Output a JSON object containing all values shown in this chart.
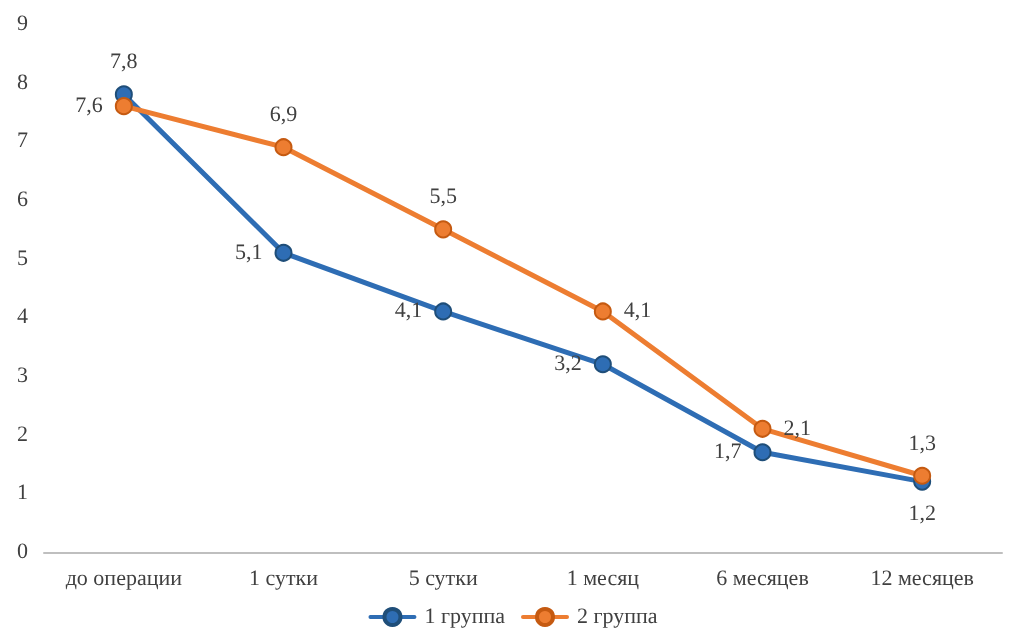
{
  "chart_data": {
    "type": "line",
    "categories": [
      "до операции",
      "1 сутки",
      "5 сутки",
      "1 месяц",
      "6 месяцев",
      "12 месяцев"
    ],
    "series": [
      {
        "name": "1 группа",
        "color": "#2e6db4",
        "values": [
          7.8,
          5.1,
          4.1,
          3.2,
          1.7,
          1.2
        ],
        "value_labels": [
          "7,8",
          "5,1",
          "4,1",
          "3,2",
          "1,7",
          "1,2"
        ]
      },
      {
        "name": "2 группа",
        "color": "#ed7d31",
        "values": [
          7.6,
          6.9,
          5.5,
          4.1,
          2.1,
          1.3
        ],
        "value_labels": [
          "7,6",
          "6,9",
          "5,5",
          "4,1",
          "2,1",
          "1,3"
        ]
      }
    ],
    "ylim": [
      0,
      9
    ],
    "yticks": [
      0,
      1,
      2,
      3,
      4,
      5,
      6,
      7,
      8,
      9
    ],
    "grid": false,
    "legend": "bottom",
    "marker": "circle",
    "line_style": "solid"
  }
}
